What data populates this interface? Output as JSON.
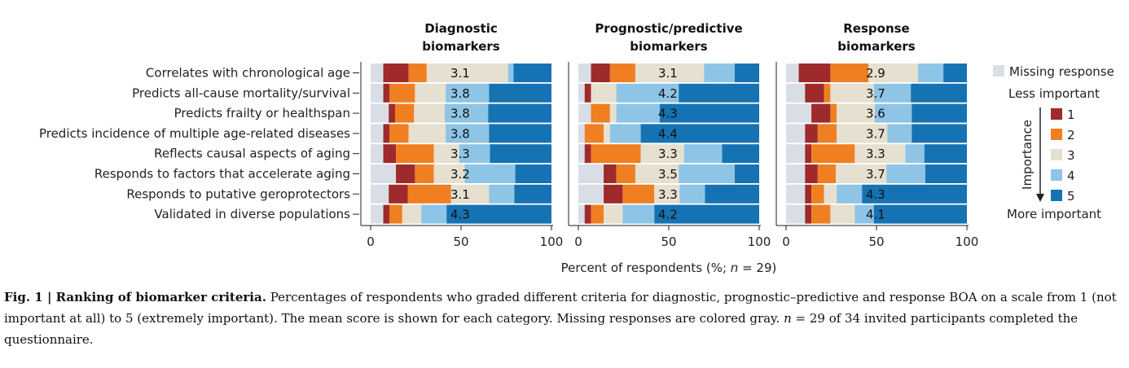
{
  "chart_data": {
    "type": "bar",
    "orientation": "horizontal",
    "stacked": true,
    "xlabel_prefix": "Percent of respondents (%; ",
    "xlabel_n": "n",
    "xlabel_suffix": " = 29)",
    "xlim": [
      0,
      100
    ],
    "xticks": [
      0,
      50,
      100
    ],
    "categories": [
      "Correlates with chronological age",
      "Predicts all-cause mortality/survival",
      "Predicts frailty or healthspan",
      "Predicts incidence of multiple age-related diseases",
      "Reflects causal aspects of aging",
      "Responds to factors that accelerate aging",
      "Responds to putative geroprotectors",
      "Validated in diverse populations"
    ],
    "segment_order": [
      "Missing response",
      "1",
      "2",
      "3",
      "4",
      "5"
    ],
    "colors": {
      "Missing response": "#d9dee6",
      "1": "#9e2a2b",
      "2": "#f07f22",
      "3": "#e5e0cf",
      "4": "#8ec4e6",
      "5": "#1673b3"
    },
    "panels": [
      {
        "title": [
          "Diagnostic",
          "biomarkers"
        ],
        "means": [
          "3.1",
          "3.8",
          "3.8",
          "3.8",
          "3.3",
          "3.2",
          "3.1",
          "4.3"
        ],
        "segments": [
          [
            7,
            14,
            10,
            45,
            3,
            21
          ],
          [
            7,
            3.5,
            14,
            17,
            24,
            34.5
          ],
          [
            10,
            3.5,
            10.5,
            17,
            24,
            35
          ],
          [
            7,
            3.5,
            10.5,
            20.5,
            24,
            34.5
          ],
          [
            7,
            7,
            21,
            14,
            17,
            34
          ],
          [
            14,
            10.5,
            10.5,
            17,
            28,
            20
          ],
          [
            10,
            10.5,
            24,
            21,
            14,
            20.5
          ],
          [
            7,
            3.5,
            7,
            10.5,
            14,
            58
          ]
        ]
      },
      {
        "title": [
          "Prognostic/predictive",
          "biomarkers"
        ],
        "means": [
          "3.1",
          "4.2",
          "4.3",
          "4.4",
          "3.3",
          "3.5",
          "3.3",
          "4.2"
        ],
        "segments": [
          [
            7,
            10.5,
            14,
            38,
            17,
            13.5
          ],
          [
            3.5,
            3.5,
            0,
            14,
            34.5,
            44.5
          ],
          [
            7,
            0,
            10.5,
            3.5,
            24,
            55
          ],
          [
            3.5,
            0,
            10.5,
            3.5,
            17,
            65.5
          ],
          [
            3.5,
            3.5,
            27.5,
            24,
            21,
            20.5
          ],
          [
            14,
            7,
            10.5,
            24,
            31,
            13.5
          ],
          [
            14,
            10.5,
            17.5,
            14,
            14,
            30
          ],
          [
            3.5,
            3.5,
            7,
            10.5,
            17.5,
            58
          ]
        ]
      },
      {
        "title": [
          "Response",
          "biomarkers"
        ],
        "means": [
          "2.9",
          "3.7",
          "3.6",
          "3.7",
          "3.3",
          "3.7",
          "4.3",
          "4.1"
        ],
        "segments": [
          [
            7,
            17.5,
            21,
            27.5,
            14,
            13
          ],
          [
            10.5,
            10.5,
            3.5,
            24,
            20.5,
            31
          ],
          [
            14,
            10.5,
            3.5,
            21,
            20.5,
            30.5
          ],
          [
            10.5,
            7,
            10.5,
            28,
            13.5,
            30.5
          ],
          [
            10.5,
            3.5,
            24,
            28,
            10.5,
            23.5
          ],
          [
            10.5,
            7,
            10,
            28,
            21.5,
            23
          ],
          [
            10.5,
            3.5,
            7,
            7,
            14,
            58
          ],
          [
            10.5,
            3.5,
            10.5,
            13.5,
            10.5,
            51.5
          ]
        ]
      }
    ],
    "legend": {
      "missing_label": "Missing response",
      "less_label": "Less important",
      "more_label": "More important",
      "axis_label": "Importance",
      "levels": [
        "1",
        "2",
        "3",
        "4",
        "5"
      ]
    }
  },
  "caption": {
    "label": "Fig. 1",
    "separator": " | ",
    "title": "Ranking of biomarker criteria.",
    "body": " Percentages of respondents who graded different criteria for diagnostic, prognostic–predictive and response BOA on a scale from 1 (not important at all) to 5 (extremely important). The mean score is shown for each category. Missing responses are colored gray. ",
    "n_symbol": "n",
    "body2": " = 29 of 34 invited participants completed the questionnaire."
  }
}
